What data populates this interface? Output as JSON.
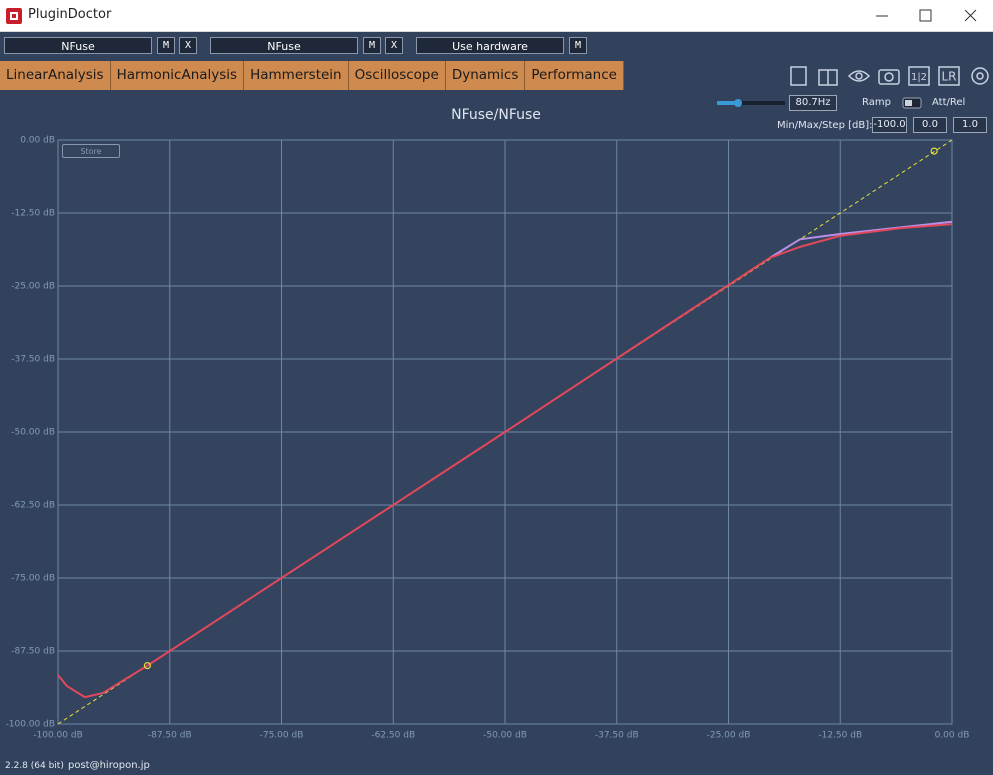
{
  "window": {
    "title": "PluginDoctor"
  },
  "slots": [
    {
      "name": "NFuse",
      "buttons": [
        "M",
        "X"
      ]
    },
    {
      "name": "NFuse",
      "buttons": [
        "M",
        "X"
      ]
    },
    {
      "name": "Use hardware",
      "buttons": [
        "M"
      ]
    }
  ],
  "tabs": [
    "LinearAnalysis",
    "HarmonicAnalysis",
    "Hammerstein",
    "Oscilloscope",
    "Dynamics",
    "Performance"
  ],
  "toolbar": {
    "split_label": "1|2",
    "channel_label": "LR"
  },
  "controls": {
    "frequency": "80.7Hz",
    "ramp": "Ramp",
    "att_rel": "Att/Rel",
    "min_max_step_label": "Min/Max/Step [dB]:",
    "min": "-100.0",
    "max": "0.0",
    "step": "1.0",
    "store": "Store"
  },
  "footer": {
    "version": "2.2.8 (64 bit)",
    "contact": "post@hiropon.jp"
  },
  "chart_data": {
    "type": "line",
    "title": "NFuse/NFuse",
    "grid": true,
    "xlim": [
      -100,
      0
    ],
    "ylim": [
      -100,
      0
    ],
    "xticks": [
      {
        "value": -100,
        "label": "-100.00 dB"
      },
      {
        "value": -87.5,
        "label": "-87.50 dB"
      },
      {
        "value": -75,
        "label": "-75.00 dB"
      },
      {
        "value": -62.5,
        "label": "-62.50 dB"
      },
      {
        "value": -50,
        "label": "-50.00 dB"
      },
      {
        "value": -37.5,
        "label": "-37.50 dB"
      },
      {
        "value": -25,
        "label": "-25.00 dB"
      },
      {
        "value": -12.5,
        "label": "-12.50 dB"
      },
      {
        "value": 0,
        "label": "0.00 dB"
      }
    ],
    "yticks": [
      {
        "value": 0,
        "label": "0.00 dB"
      },
      {
        "value": -12.5,
        "label": "-12.50 dB"
      },
      {
        "value": -25,
        "label": "-25.00 dB"
      },
      {
        "value": -37.5,
        "label": "-37.50 dB"
      },
      {
        "value": -50,
        "label": "-50.00 dB"
      },
      {
        "value": -62.5,
        "label": "-62.50 dB"
      },
      {
        "value": -75,
        "label": "-75.00 dB"
      },
      {
        "value": -87.5,
        "label": "-87.50 dB"
      },
      {
        "value": -100,
        "label": "-100.00 dB"
      }
    ],
    "series": [
      {
        "color": "#e4e03c",
        "dashed": true,
        "x": [
          -100,
          0
        ],
        "values": [
          -100,
          0
        ]
      },
      {
        "color": "#b890e8",
        "x": [
          -20.4,
          -17,
          -12.5,
          0
        ],
        "values": [
          -20.2,
          -17,
          -16.1,
          -14
        ]
      },
      {
        "color": "#e2485c",
        "x": [
          -100,
          -99,
          -97,
          -95,
          -90,
          -50,
          -20.4,
          -17,
          -12.5,
          -5.8,
          0
        ],
        "values": [
          -91.6,
          -93.5,
          -95.4,
          -94.7,
          -90,
          -50,
          -20.2,
          -18.3,
          -16.4,
          -15.1,
          -14.4
        ]
      }
    ],
    "markers": {
      "color": "#e4e03c",
      "x": [
        -90,
        -2
      ],
      "values": [
        -90,
        -1.9
      ]
    }
  }
}
